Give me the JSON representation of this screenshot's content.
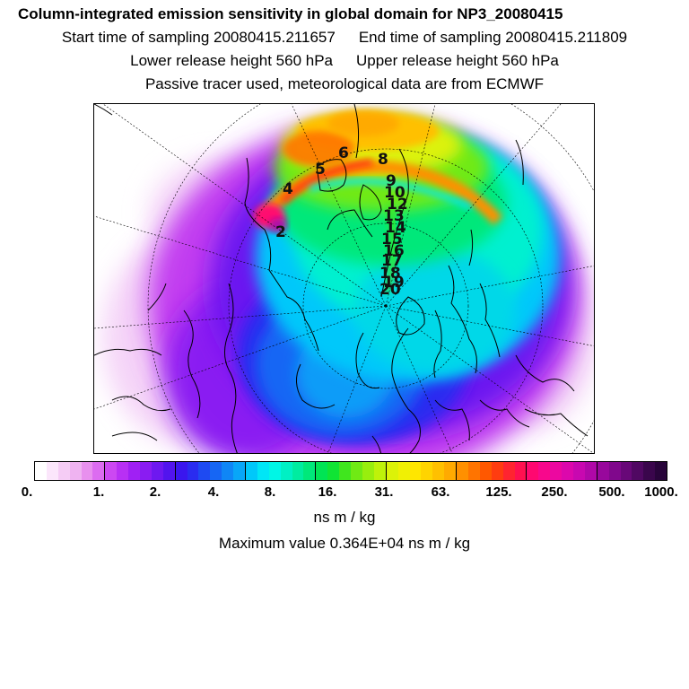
{
  "header": {
    "title": "Column-integrated emission sensitivity in global domain for NP3_20080415",
    "start_label": "Start time of sampling 20080415.211657",
    "end_label": "End time of sampling 20080415.211809",
    "lower_label": "Lower release height  560 hPa",
    "upper_label": "Upper release height  560 hPa",
    "tracer_label": "Passive tracer used, meteorological data are from ECMWF"
  },
  "map": {
    "track_labels": [
      "2",
      "4",
      "5",
      "6",
      "8",
      "9",
      "10",
      "12",
      "13",
      "14",
      "15",
      "16",
      "17",
      "18",
      "19",
      "20"
    ]
  },
  "colorbar": {
    "ticks": [
      "0.",
      "1.",
      "2.",
      "4.",
      "8.",
      "16.",
      "31.",
      "63.",
      "125.",
      "250.",
      "500.",
      "1000."
    ],
    "colors": [
      "#ffffff",
      "#fbe6fb",
      "#f5ccf5",
      "#efb3f1",
      "#e890ee",
      "#dc6cf0",
      "#cc48f2",
      "#b830f4",
      "#a020f4",
      "#8a1cf2",
      "#6e18f0",
      "#5214ee",
      "#3a16ee",
      "#2a2cf0",
      "#1e4af2",
      "#1666f4",
      "#0f86f6",
      "#08a6f8",
      "#00c8fa",
      "#00e6f6",
      "#00f6e6",
      "#00f0c4",
      "#00eca0",
      "#00e87a",
      "#00e454",
      "#10e434",
      "#40e61e",
      "#70ea14",
      "#98ee0e",
      "#bef20a",
      "#dcf208",
      "#f0f004",
      "#ffe600",
      "#ffd400",
      "#ffc000",
      "#ffaa00",
      "#ff9000",
      "#ff7400",
      "#ff5800",
      "#ff3c10",
      "#ff2430",
      "#ff1050",
      "#ff0870",
      "#f8088c",
      "#ec08a0",
      "#dc08ac",
      "#c808b0",
      "#b008a8",
      "#98089c",
      "#80088c",
      "#680878",
      "#500862",
      "#3a064c",
      "#28043a"
    ],
    "units": "ns m / kg"
  },
  "footer": {
    "max_value": "Maximum value  0.364E+04 ns m / kg"
  }
}
